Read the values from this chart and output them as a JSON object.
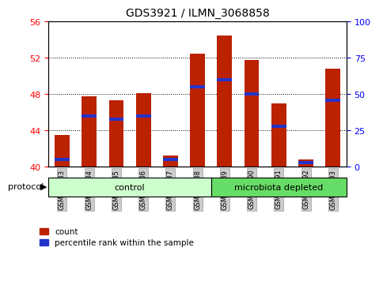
{
  "title": "GDS3921 / ILMN_3068858",
  "samples": [
    "GSM561883",
    "GSM561884",
    "GSM561885",
    "GSM561886",
    "GSM561887",
    "GSM561888",
    "GSM561889",
    "GSM561890",
    "GSM561891",
    "GSM561892",
    "GSM561893"
  ],
  "count_values": [
    43.5,
    47.8,
    47.3,
    48.1,
    41.3,
    52.5,
    54.5,
    51.8,
    47.0,
    40.8,
    50.8
  ],
  "percentile_values": [
    5.0,
    35.0,
    33.0,
    35.0,
    5.0,
    55.0,
    60.0,
    50.0,
    28.0,
    3.0,
    46.0
  ],
  "ymin": 40,
  "ymax": 56,
  "yticks": [
    40,
    44,
    48,
    52,
    56
  ],
  "y2min": 0,
  "y2max": 100,
  "y2ticks": [
    0,
    25,
    50,
    75,
    100
  ],
  "bar_color": "#bb2200",
  "percentile_color": "#2233cc",
  "bar_width": 0.55,
  "n_control": 6,
  "n_microbiota": 5,
  "control_color": "#ccffcc",
  "microbiota_color": "#66dd66",
  "protocol_label": "protocol",
  "control_label": "control",
  "microbiota_label": "microbiota depleted",
  "legend_count": "count",
  "legend_percentile": "percentile rank within the sample",
  "title_fontsize": 10,
  "tick_fontsize": 8,
  "label_fontsize": 8
}
